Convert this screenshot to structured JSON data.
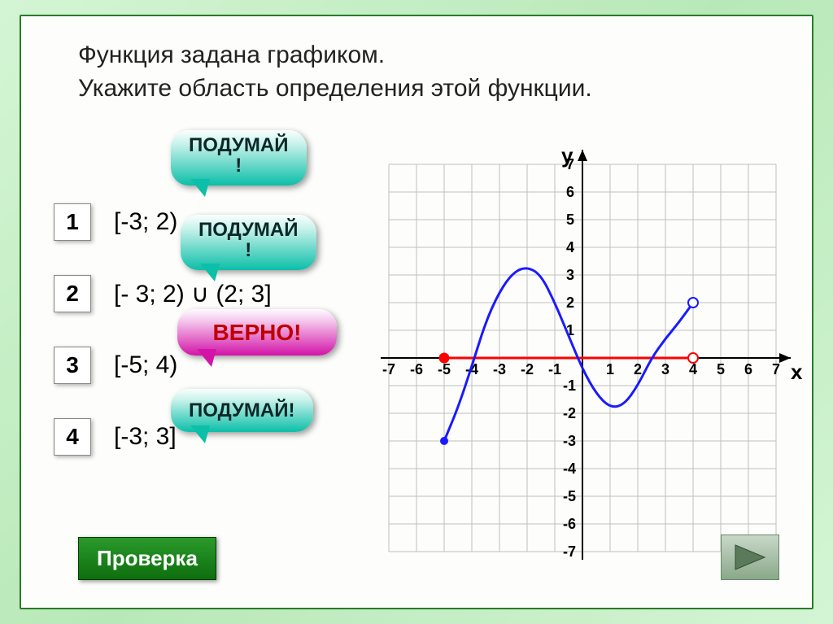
{
  "question": {
    "line1": "Функция задана графиком.",
    "line2": "Укажите область определения этой функции."
  },
  "options": [
    {
      "num": "1",
      "text": "[-3; 2)"
    },
    {
      "num": "2",
      "text": "[- 3; 2) ∪ (2; 3]"
    },
    {
      "num": "3",
      "text": "[-5; 4)"
    },
    {
      "num": "4",
      "text": "[-3; 3]"
    }
  ],
  "bubbles": {
    "b1": "ПОДУМАЙ\n!",
    "b2": "ПОДУМАЙ\n!",
    "b3": "ВЕРНО!",
    "b4": "ПОДУМАЙ!"
  },
  "check_label": "Проверка",
  "chart": {
    "xlim": [
      -7,
      7
    ],
    "ylim": [
      -7,
      7
    ],
    "x_ticks": [
      -7,
      -6,
      -5,
      -4,
      -3,
      -2,
      -1,
      1,
      2,
      3,
      4,
      5,
      6,
      7
    ],
    "y_ticks_pos": [
      1,
      2,
      3,
      4,
      5,
      6,
      7
    ],
    "y_ticks_neg": [
      -1,
      -2,
      -3,
      -4,
      -5,
      -6,
      -7
    ],
    "x_label": "x",
    "y_label": "y",
    "grid_color": "#bfbfbf",
    "axis_color": "#000000",
    "curve_color": "#1a1aff",
    "curve_width": 3,
    "segment_color": "#ff0000",
    "segment_width": 3,
    "background_color": "#ffffff",
    "tick_font_size": 18,
    "tick_font_weight": "bold",
    "axis_label_font_size": 26,
    "curve_points": [
      [
        -5,
        -3
      ],
      [
        -4.5,
        -1.8
      ],
      [
        -4,
        -0.3
      ],
      [
        -3.5,
        1.3
      ],
      [
        -3,
        2.4
      ],
      [
        -2.5,
        3.1
      ],
      [
        -2,
        3.3
      ],
      [
        -1.5,
        3
      ],
      [
        -1,
        2
      ],
      [
        -0.5,
        0.8
      ],
      [
        0,
        -0.4
      ],
      [
        0.5,
        -1.3
      ],
      [
        1,
        -1.8
      ],
      [
        1.5,
        -1.7
      ],
      [
        2,
        -1
      ],
      [
        2.5,
        0
      ],
      [
        3,
        0.7
      ],
      [
        3.5,
        1.3
      ],
      [
        4,
        2
      ]
    ],
    "curve_start_closed": true,
    "curve_end_open": true,
    "segment_from": -5,
    "segment_to": 4,
    "segment_left_closed": true,
    "segment_right_open": true
  }
}
